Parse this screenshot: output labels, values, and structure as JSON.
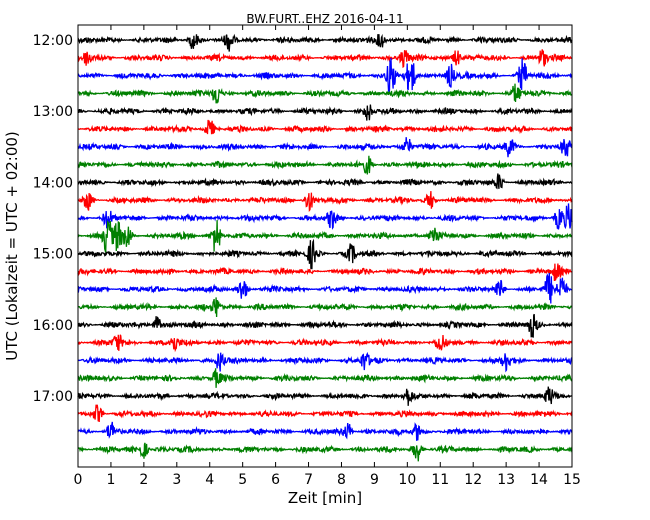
{
  "chart_data": {
    "type": "line",
    "title": "BW.FURT..EHZ 2016-04-11",
    "xlabel": "Zeit  [min]",
    "ylabel": "UTC (Lokalzeit = UTC + 02:00)",
    "xlim": [
      0,
      15
    ],
    "x_ticks": [
      0,
      1,
      2,
      3,
      4,
      5,
      6,
      7,
      8,
      9,
      10,
      11,
      12,
      13,
      14,
      15
    ],
    "x_tick_labels": [
      "0",
      "1",
      "2",
      "3",
      "4",
      "5",
      "6",
      "7",
      "8",
      "9",
      "10",
      "11",
      "12",
      "13",
      "14",
      "15"
    ],
    "y_ticks": [
      {
        "label": "12:00",
        "trace_index": 0
      },
      {
        "label": "13:00",
        "trace_index": 4
      },
      {
        "label": "14:00",
        "trace_index": 8
      },
      {
        "label": "15:00",
        "trace_index": 12
      },
      {
        "label": "16:00",
        "trace_index": 16
      },
      {
        "label": "17:00",
        "trace_index": 20
      }
    ],
    "trace_colors": [
      "#000000",
      "#ff0000",
      "#0000ff",
      "#008000"
    ],
    "series": [
      {
        "start": "12:00",
        "color": "#000000",
        "bursts": [
          {
            "x": 3.5,
            "a": 1.4
          },
          {
            "x": 4.6,
            "a": 1.3
          },
          {
            "x": 9.2,
            "a": 1.2
          }
        ]
      },
      {
        "start": "12:15",
        "color": "#ff0000",
        "bursts": [
          {
            "x": 0.3,
            "a": 1.2
          },
          {
            "x": 9.9,
            "a": 1.3
          },
          {
            "x": 11.5,
            "a": 1.2
          },
          {
            "x": 14.1,
            "a": 1.3
          }
        ]
      },
      {
        "start": "12:30",
        "color": "#0000ff",
        "bursts": [
          {
            "x": 9.5,
            "a": 3.0
          },
          {
            "x": 10.1,
            "a": 2.8
          },
          {
            "x": 11.3,
            "a": 1.8
          },
          {
            "x": 13.5,
            "a": 2.2
          }
        ]
      },
      {
        "start": "12:45",
        "color": "#008000",
        "bursts": [
          {
            "x": 4.2,
            "a": 1.8
          },
          {
            "x": 13.3,
            "a": 1.3
          }
        ]
      },
      {
        "start": "13:00",
        "color": "#000000",
        "bursts": [
          {
            "x": 8.8,
            "a": 1.3
          }
        ]
      },
      {
        "start": "13:15",
        "color": "#ff0000",
        "bursts": [
          {
            "x": 4.0,
            "a": 1.4
          }
        ]
      },
      {
        "start": "13:30",
        "color": "#0000ff",
        "bursts": [
          {
            "x": 10.0,
            "a": 1.4
          },
          {
            "x": 13.1,
            "a": 1.3
          },
          {
            "x": 14.8,
            "a": 1.3
          }
        ]
      },
      {
        "start": "13:45",
        "color": "#008000",
        "bursts": [
          {
            "x": 8.8,
            "a": 1.2
          }
        ]
      },
      {
        "start": "14:00",
        "color": "#000000",
        "bursts": [
          {
            "x": 12.8,
            "a": 1.2
          }
        ]
      },
      {
        "start": "14:15",
        "color": "#ff0000",
        "bursts": [
          {
            "x": 0.3,
            "a": 1.3
          },
          {
            "x": 7.0,
            "a": 1.6
          },
          {
            "x": 10.7,
            "a": 1.2
          }
        ]
      },
      {
        "start": "14:30",
        "color": "#0000ff",
        "bursts": [
          {
            "x": 0.9,
            "a": 1.3
          },
          {
            "x": 7.7,
            "a": 1.3
          },
          {
            "x": 14.6,
            "a": 1.6
          },
          {
            "x": 14.9,
            "a": 2.0
          }
        ]
      },
      {
        "start": "14:45",
        "color": "#008000",
        "bursts": [
          {
            "x": 0.9,
            "a": 2.8
          },
          {
            "x": 1.2,
            "a": 2.2
          },
          {
            "x": 1.5,
            "a": 1.6
          },
          {
            "x": 4.2,
            "a": 2.8
          },
          {
            "x": 10.8,
            "a": 1.5
          }
        ]
      },
      {
        "start": "15:00",
        "color": "#000000",
        "bursts": [
          {
            "x": 7.1,
            "a": 2.0
          },
          {
            "x": 8.3,
            "a": 1.3
          }
        ]
      },
      {
        "start": "15:15",
        "color": "#ff0000",
        "bursts": [
          {
            "x": 14.5,
            "a": 1.2
          }
        ]
      },
      {
        "start": "15:30",
        "color": "#0000ff",
        "bursts": [
          {
            "x": 5.0,
            "a": 1.7
          },
          {
            "x": 12.8,
            "a": 1.3
          },
          {
            "x": 14.3,
            "a": 2.2
          },
          {
            "x": 14.7,
            "a": 2.0
          }
        ]
      },
      {
        "start": "15:45",
        "color": "#008000",
        "bursts": [
          {
            "x": 4.2,
            "a": 1.6
          }
        ]
      },
      {
        "start": "16:00",
        "color": "#000000",
        "bursts": [
          {
            "x": 2.4,
            "a": 1.3
          },
          {
            "x": 13.8,
            "a": 1.6
          }
        ]
      },
      {
        "start": "16:15",
        "color": "#ff0000",
        "bursts": [
          {
            "x": 1.2,
            "a": 1.4
          },
          {
            "x": 2.9,
            "a": 1.3
          },
          {
            "x": 11.0,
            "a": 1.2
          }
        ]
      },
      {
        "start": "16:30",
        "color": "#0000ff",
        "bursts": [
          {
            "x": 4.3,
            "a": 1.5
          },
          {
            "x": 8.7,
            "a": 1.4
          },
          {
            "x": 13.0,
            "a": 1.4
          }
        ]
      },
      {
        "start": "16:45",
        "color": "#008000",
        "bursts": [
          {
            "x": 4.2,
            "a": 1.2
          }
        ]
      },
      {
        "start": "17:00",
        "color": "#000000",
        "bursts": [
          {
            "x": 10.0,
            "a": 1.2
          },
          {
            "x": 14.3,
            "a": 1.2
          }
        ]
      },
      {
        "start": "17:15",
        "color": "#ff0000",
        "bursts": [
          {
            "x": 0.6,
            "a": 1.2
          }
        ]
      },
      {
        "start": "17:30",
        "color": "#0000ff",
        "bursts": [
          {
            "x": 1.0,
            "a": 1.3
          },
          {
            "x": 8.2,
            "a": 1.2
          },
          {
            "x": 10.3,
            "a": 1.2
          }
        ]
      },
      {
        "start": "17:45",
        "color": "#008000",
        "bursts": [
          {
            "x": 2.0,
            "a": 1.3
          },
          {
            "x": 10.3,
            "a": 1.6
          }
        ]
      }
    ]
  }
}
